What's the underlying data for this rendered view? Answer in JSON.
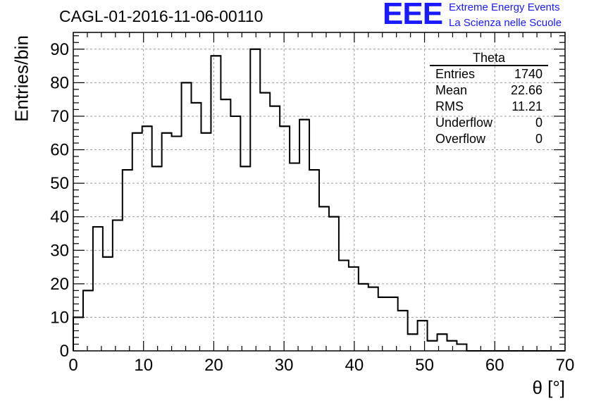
{
  "header": {
    "run_title": "CAGL-01-2016-11-06-00110",
    "logo": "EEE",
    "logo_line1": "Extreme Energy Events",
    "logo_line2": "La Scienza nelle Scuole"
  },
  "stats_box": {
    "title": "Theta",
    "rows": [
      {
        "label": "Entries",
        "value": "1740"
      },
      {
        "label": "Mean",
        "value": "22.66"
      },
      {
        "label": "RMS",
        "value": "11.21"
      },
      {
        "label": "Underflow",
        "value": "0"
      },
      {
        "label": "Overflow",
        "value": "0"
      }
    ]
  },
  "chart_data": {
    "type": "histogram",
    "title": "CAGL-01-2016-11-06-00110",
    "xlabel": "θ [°]",
    "ylabel": "Entries/bin",
    "xlim": [
      0,
      70
    ],
    "ylim": [
      0,
      95
    ],
    "grid": true,
    "bin_width": 1.4,
    "x_start": 0,
    "x_ticks": [
      0,
      10,
      20,
      30,
      40,
      50,
      60,
      70
    ],
    "y_ticks": [
      0,
      10,
      20,
      30,
      40,
      50,
      60,
      70,
      80,
      90
    ],
    "values": [
      10,
      18,
      37,
      28,
      39,
      54,
      65,
      67,
      55,
      65,
      64,
      80,
      74,
      65,
      88,
      75,
      70,
      55,
      90,
      77,
      73,
      67,
      56,
      69,
      54,
      43,
      40,
      27,
      25,
      20,
      19,
      16,
      16,
      12,
      5,
      9,
      3,
      5,
      3,
      2,
      0,
      0,
      0,
      0,
      0,
      0,
      0,
      0,
      0,
      0
    ],
    "line_color": "#000000",
    "grid_color": "#9a9a9a"
  }
}
